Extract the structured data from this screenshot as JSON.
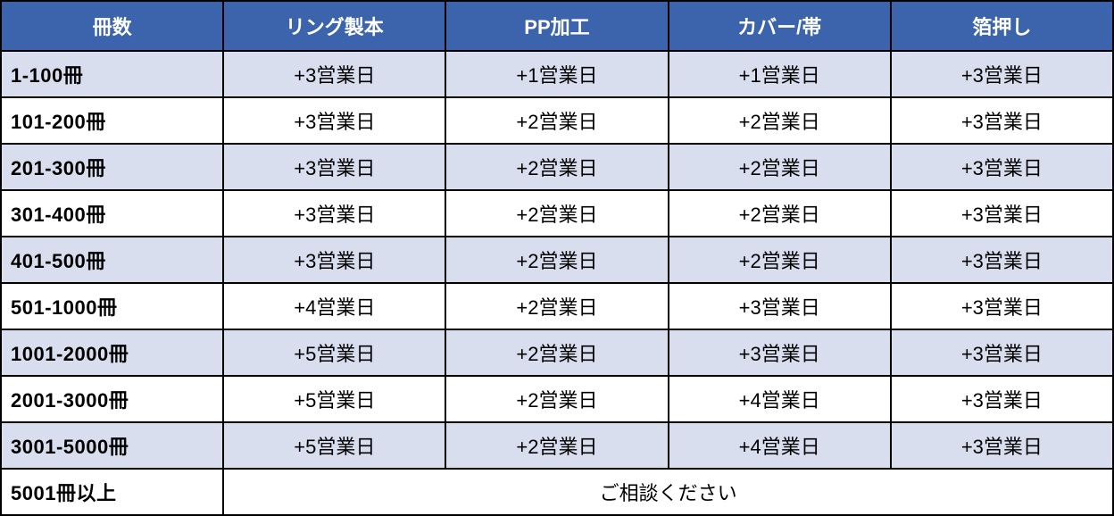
{
  "table": {
    "type": "table",
    "header_bg": "#3b64ad",
    "header_fg": "#ffffff",
    "alt_row_bg": "#d9deef",
    "border_color": "#000000",
    "font_size_header": 22,
    "font_size_body": 22,
    "columns": [
      {
        "label": "冊数",
        "width_pct": 20
      },
      {
        "label": "リング製本",
        "width_pct": 20
      },
      {
        "label": "PP加工",
        "width_pct": 20
      },
      {
        "label": "カバー/帯",
        "width_pct": 20
      },
      {
        "label": "箔押し",
        "width_pct": 20
      }
    ],
    "rows": [
      {
        "label": "1-100冊",
        "cells": [
          "+3営業日",
          "+1営業日",
          "+1営業日",
          "+3営業日"
        ],
        "stripe": true
      },
      {
        "label": "101-200冊",
        "cells": [
          "+3営業日",
          "+2営業日",
          "+2営業日",
          "+3営業日"
        ],
        "stripe": false
      },
      {
        "label": "201-300冊",
        "cells": [
          "+3営業日",
          "+2営業日",
          "+2営業日",
          "+3営業日"
        ],
        "stripe": true
      },
      {
        "label": "301-400冊",
        "cells": [
          "+3営業日",
          "+2営業日",
          "+2営業日",
          "+3営業日"
        ],
        "stripe": false
      },
      {
        "label": "401-500冊",
        "cells": [
          "+3営業日",
          "+2営業日",
          "+2営業日",
          "+3営業日"
        ],
        "stripe": true
      },
      {
        "label": "501-1000冊",
        "cells": [
          "+4営業日",
          "+2営業日",
          "+3営業日",
          "+3営業日"
        ],
        "stripe": false
      },
      {
        "label": "1001-2000冊",
        "cells": [
          "+5営業日",
          "+2営業日",
          "+3営業日",
          "+3営業日"
        ],
        "stripe": true
      },
      {
        "label": "2001-3000冊",
        "cells": [
          "+5営業日",
          "+2営業日",
          "+4営業日",
          "+3営業日"
        ],
        "stripe": false
      },
      {
        "label": "3001-5000冊",
        "cells": [
          "+5営業日",
          "+2営業日",
          "+4営業日",
          "+3営業日"
        ],
        "stripe": true
      }
    ],
    "last_row": {
      "label": "5001冊以上",
      "merged_text": "ご相談ください",
      "stripe": false
    }
  }
}
